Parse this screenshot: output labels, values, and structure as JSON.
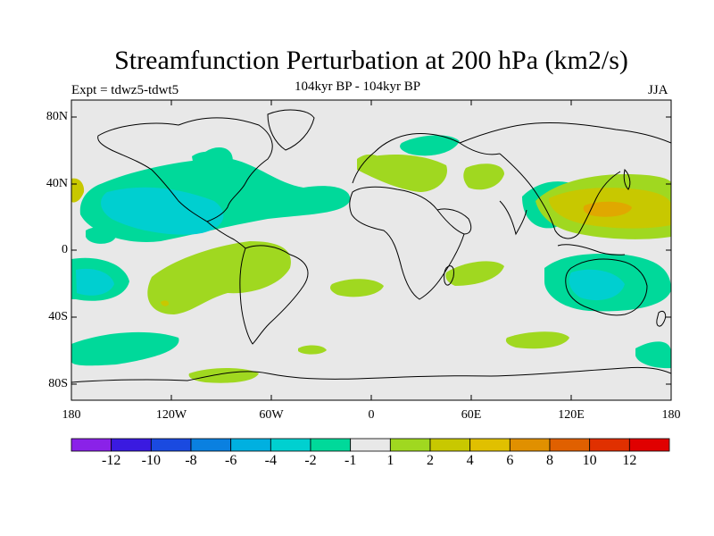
{
  "title": "Streamfunction Perturbation at 200 hPa (km2/s)",
  "subtitle": "104kyr BP - 104kyr BP",
  "experiment": "Expt = tdwz5-tdwt5",
  "season": "JJA",
  "colors": {
    "background_field": "#e8e8e8",
    "coastline": "#000000",
    "neg_1": "#00d99a",
    "neg_2": "#00cfd0",
    "pos_1": "#a0d820",
    "pos_2": "#c8c800",
    "pos_3": "#e0a800"
  },
  "map": {
    "projection": "cylindrical equidistant",
    "lat_labels": [
      "80N",
      "40N",
      "0",
      "40S",
      "80S"
    ],
    "lon_labels": [
      "180",
      "120W",
      "60W",
      "0",
      "60E",
      "120E",
      "180"
    ]
  },
  "colorbar": {
    "labels": [
      "-12",
      "-10",
      "-8",
      "-6",
      "-4",
      "-2",
      "-1",
      "1",
      "2",
      "4",
      "6",
      "8",
      "10",
      "12"
    ],
    "colors": [
      "#8a22e8",
      "#3a1ae0",
      "#1a4ae0",
      "#0a80e0",
      "#00b0e0",
      "#00d0d0",
      "#00d99a",
      "#e8e8e8",
      "#a0d820",
      "#c8c800",
      "#e0c000",
      "#e09000",
      "#e06000",
      "#e03000",
      "#e00000"
    ]
  }
}
